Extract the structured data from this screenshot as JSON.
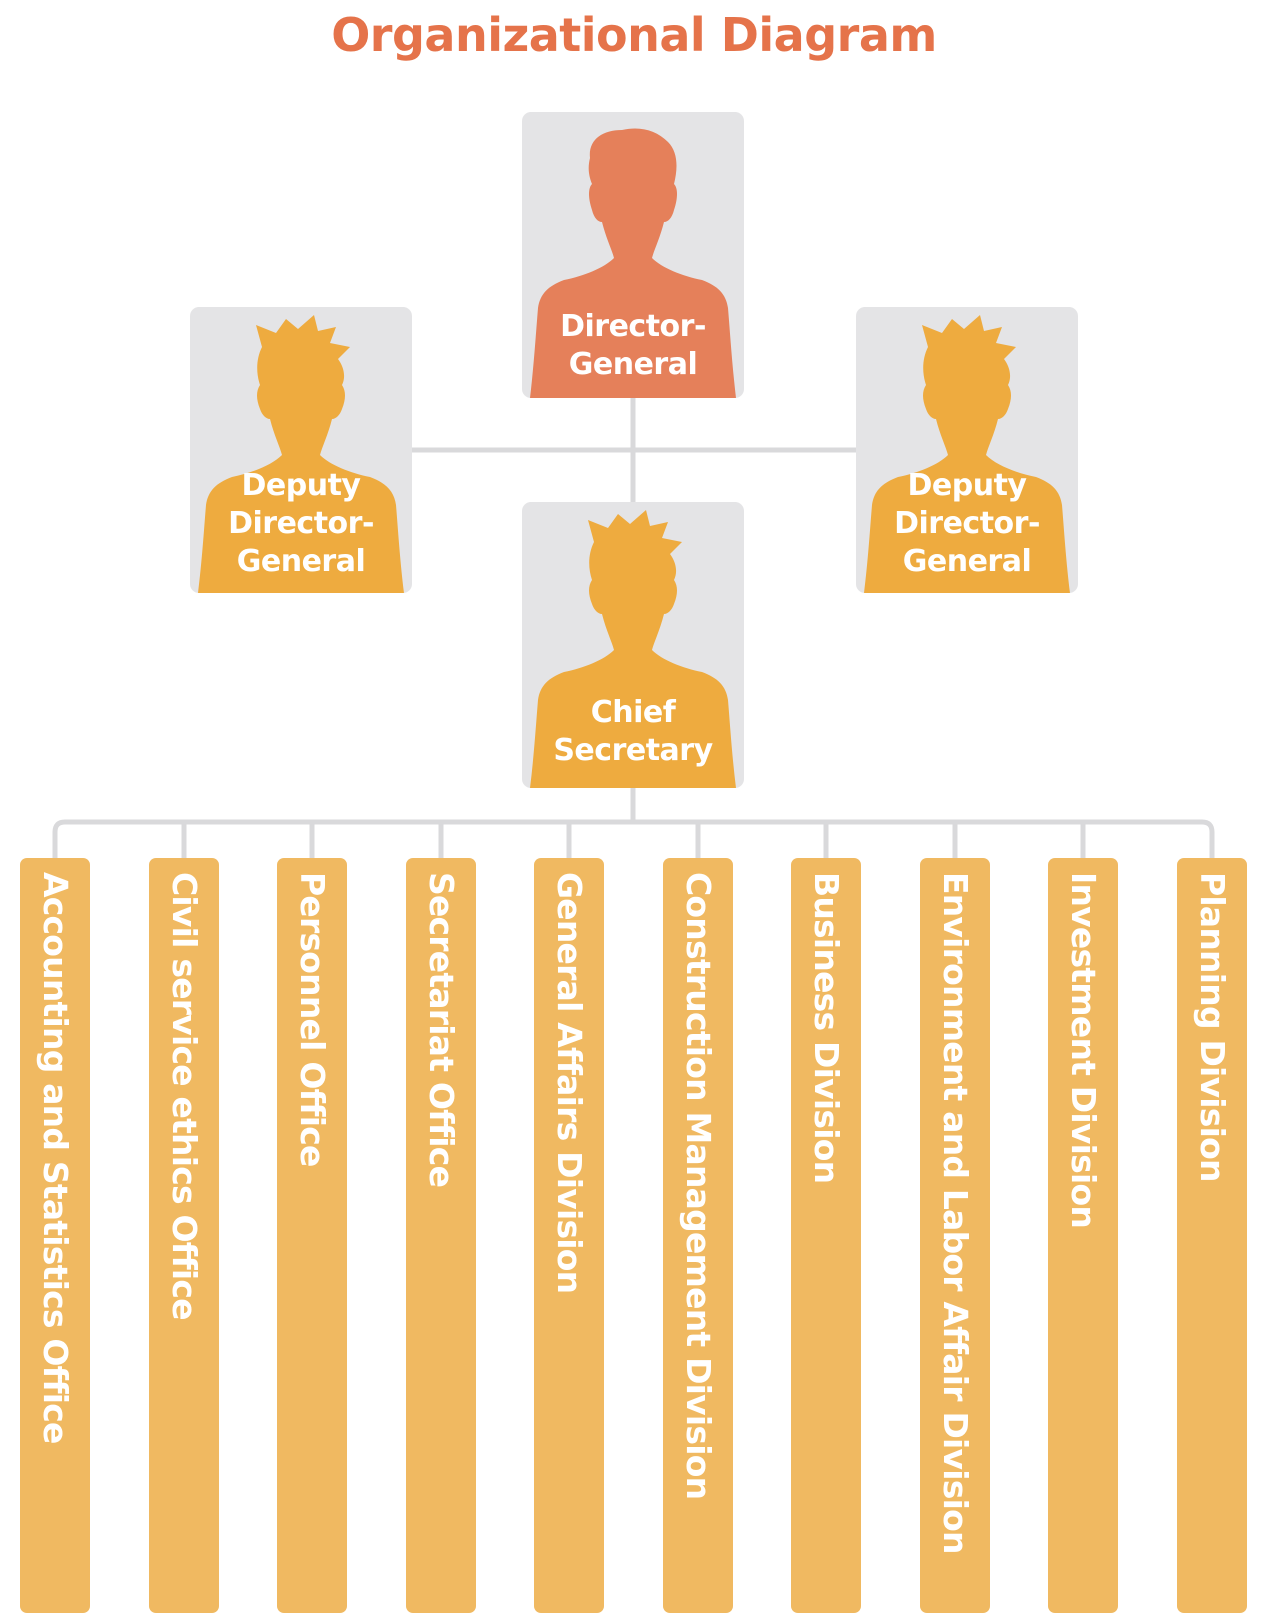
{
  "title": "Organizational Diagram",
  "colors": {
    "title": "#e5734a",
    "director": "#e5805a",
    "deputy": "#eeab3f",
    "card_background": "#e4e4e6",
    "column": "#f0b961",
    "connector": "#d9d9db"
  },
  "nodes": {
    "director_general": {
      "label": "Director-\nGeneral",
      "icon": "person-silhouette-icon"
    },
    "deputy_left": {
      "label": "Deputy\nDirector-\nGeneral",
      "icon": "person-silhouette-icon"
    },
    "deputy_right": {
      "label": "Deputy\nDirector-\nGeneral",
      "icon": "person-silhouette-icon"
    },
    "chief_secretary": {
      "label": "Chief\nSecretary",
      "icon": "person-silhouette-icon"
    }
  },
  "divisions": [
    "Accounting and Statistics Office",
    "Civil service ethics Office",
    "Personnel Office",
    "Secretariat Office",
    "General Affairs Division",
    "Construction Management Division",
    "Business Division",
    "Environment and Labor Affair Division",
    "Investment Division",
    "Planning Division"
  ]
}
